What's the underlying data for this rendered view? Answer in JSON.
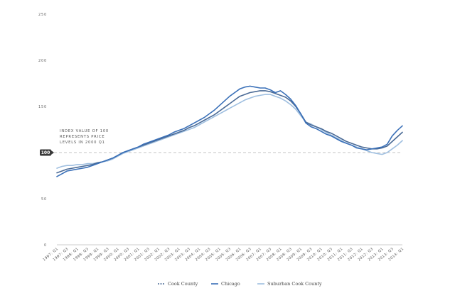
{
  "chart_data": {
    "type": "line",
    "title": "",
    "xlabel": "",
    "ylabel": "",
    "ylim": [
      0,
      250
    ],
    "yticks": [
      0,
      50,
      100,
      150,
      200,
      250
    ],
    "grid": false,
    "reference_line": {
      "value": 100,
      "label": "100"
    },
    "annotation": [
      "INDEX VALUE OF 100",
      "REPRESENTS PRICE",
      "LEVELS IN 2000 Q1"
    ],
    "tick_labels": [
      "1997: Q1",
      "1997: Q3",
      "1998: Q1",
      "1998: Q3",
      "1999: Q1",
      "1999: Q3",
      "2000: Q1",
      "2000: Q3",
      "2001: Q1",
      "2001: Q3",
      "2002: Q1",
      "2002: Q3",
      "2003: Q1",
      "2003: Q3",
      "2004: Q1",
      "2004: Q3",
      "2005: Q1",
      "2005: Q3",
      "2006: Q1",
      "2006: Q3",
      "2007: Q1",
      "2007: Q3",
      "2008: Q1",
      "2008: Q3",
      "2009: Q1",
      "2009: Q3",
      "2010: Q1",
      "2010: Q3",
      "2011: Q1",
      "2011: Q3",
      "2012: Q1",
      "2012: Q3",
      "2013: Q1",
      "2013: Q3",
      "2014: Q1"
    ],
    "x": [
      "1997Q1",
      "1997Q2",
      "1997Q3",
      "1997Q4",
      "1998Q1",
      "1998Q2",
      "1998Q3",
      "1998Q4",
      "1999Q1",
      "1999Q2",
      "1999Q3",
      "1999Q4",
      "2000Q1",
      "2000Q2",
      "2000Q3",
      "2000Q4",
      "2001Q1",
      "2001Q2",
      "2001Q3",
      "2001Q4",
      "2002Q1",
      "2002Q2",
      "2002Q3",
      "2002Q4",
      "2003Q1",
      "2003Q2",
      "2003Q3",
      "2003Q4",
      "2004Q1",
      "2004Q2",
      "2004Q3",
      "2004Q4",
      "2005Q1",
      "2005Q2",
      "2005Q3",
      "2005Q4",
      "2006Q1",
      "2006Q2",
      "2006Q3",
      "2006Q4",
      "2007Q1",
      "2007Q2",
      "2007Q3",
      "2007Q4",
      "2008Q1",
      "2008Q2",
      "2008Q3",
      "2008Q4",
      "2009Q1",
      "2009Q2",
      "2009Q3",
      "2009Q4",
      "2010Q1",
      "2010Q2",
      "2010Q3",
      "2010Q4",
      "2011Q1",
      "2011Q2",
      "2011Q3",
      "2011Q4",
      "2012Q1",
      "2012Q2",
      "2012Q3",
      "2012Q4",
      "2013Q1",
      "2013Q2",
      "2013Q3",
      "2013Q4",
      "2014Q1"
    ],
    "series": [
      {
        "name": "Cook County",
        "color": "#4a6a96",
        "values": [
          78,
          80,
          82,
          83,
          84,
          85,
          86,
          87,
          89,
          90,
          92,
          94,
          97,
          100,
          102,
          104,
          106,
          108,
          110,
          112,
          114,
          116,
          118,
          120,
          122,
          124,
          127,
          129,
          132,
          135,
          138,
          141,
          145,
          149,
          153,
          157,
          161,
          163,
          165,
          166,
          167,
          167,
          166,
          164,
          162,
          160,
          156,
          150,
          142,
          133,
          130,
          128,
          126,
          123,
          121,
          118,
          115,
          112,
          110,
          108,
          106,
          105,
          104,
          104,
          105,
          107,
          112,
          117,
          122
        ]
      },
      {
        "name": "Chicago",
        "color": "#3a70b8",
        "values": [
          74,
          77,
          80,
          81,
          82,
          83,
          84,
          86,
          88,
          90,
          92,
          94,
          97,
          100,
          102,
          104,
          106,
          109,
          111,
          113,
          115,
          117,
          119,
          122,
          124,
          126,
          129,
          132,
          135,
          138,
          142,
          146,
          151,
          156,
          161,
          165,
          169,
          171,
          172,
          171,
          170,
          170,
          168,
          165,
          167,
          163,
          158,
          151,
          142,
          132,
          128,
          126,
          123,
          120,
          118,
          115,
          112,
          110,
          108,
          105,
          104,
          103,
          104,
          105,
          106,
          109,
          118,
          124,
          129
        ]
      },
      {
        "name": "Suburban Cook County",
        "color": "#9fbfe0",
        "values": [
          83,
          85,
          86,
          86,
          87,
          87,
          88,
          88,
          89,
          90,
          91,
          93,
          96,
          99,
          101,
          103,
          105,
          107,
          109,
          111,
          113,
          115,
          117,
          119,
          121,
          123,
          125,
          127,
          130,
          133,
          136,
          139,
          142,
          145,
          148,
          151,
          154,
          157,
          159,
          161,
          162,
          163,
          163,
          161,
          159,
          156,
          152,
          147,
          140,
          133,
          131,
          128,
          125,
          122,
          119,
          116,
          113,
          110,
          108,
          106,
          104,
          102,
          100,
          99,
          98,
          100,
          104,
          108,
          113
        ]
      }
    ],
    "legend_position": "bottom-center"
  }
}
